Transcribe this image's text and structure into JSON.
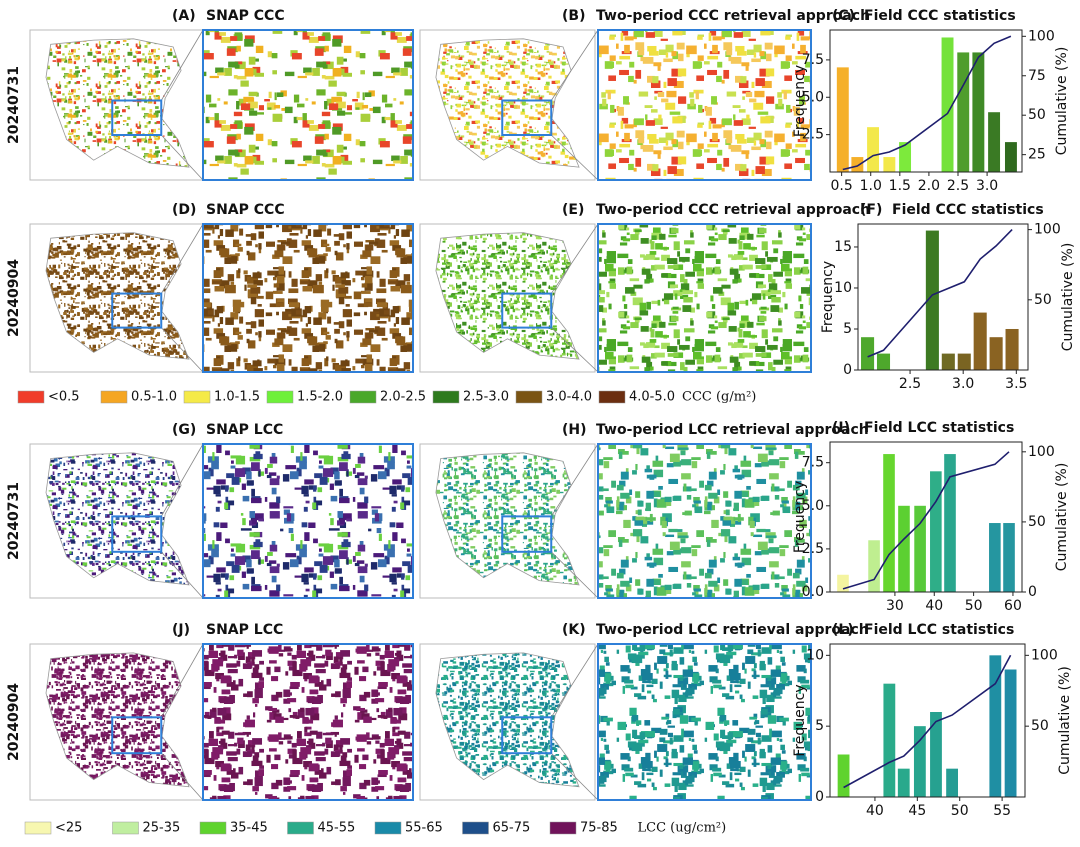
{
  "panels": [
    {
      "label": "(A)",
      "title": "SNAP CCC"
    },
    {
      "label": "(B)",
      "title": "Two-period CCC retrieval approach"
    },
    {
      "label": "(D)",
      "title": "SNAP CCC"
    },
    {
      "label": "(E)",
      "title": "Two-period CCC retrieval approach"
    },
    {
      "label": "(G)",
      "title": "SNAP LCC"
    },
    {
      "label": "(H)",
      "title": "Two-period LCC retrieval approach"
    },
    {
      "label": "(J)",
      "title": "SNAP LCC"
    },
    {
      "label": "(K)",
      "title": "Two-period LCC retrieval approach"
    }
  ],
  "row_labels": [
    "20240731",
    "20240904",
    "20240731",
    "20240904"
  ],
  "legends": [
    {
      "items": [
        {
          "label": "<0.5",
          "color": "#f03c2a"
        },
        {
          "label": "0.5-1.0",
          "color": "#f5a623"
        },
        {
          "label": "1.0-1.5",
          "color": "#f5ea48"
        },
        {
          "label": "1.5-2.0",
          "color": "#6ef03a"
        },
        {
          "label": "2.0-2.5",
          "color": "#4aa82a"
        },
        {
          "label": "2.5-3.0",
          "color": "#2e7a1e"
        },
        {
          "label": "3.0-4.0",
          "color": "#7a5414"
        },
        {
          "label": "4.0-5.0",
          "color": "#6b2e10"
        }
      ],
      "unit": "CCC (g/m²)"
    },
    {
      "items": [
        {
          "label": "<25",
          "color": "#f7f7b0"
        },
        {
          "label": "25-35",
          "color": "#c0eea0"
        },
        {
          "label": "35-45",
          "color": "#5fd32e"
        },
        {
          "label": "45-55",
          "color": "#2aab8a"
        },
        {
          "label": "55-65",
          "color": "#1a8aa8"
        },
        {
          "label": "65-75",
          "color": "#1e4f8a"
        },
        {
          "label": "75-85",
          "color": "#70135a"
        }
      ],
      "unit": "LCC (ug/cm²)"
    }
  ],
  "chart_data": [
    {
      "type": "bar",
      "label": "(C)",
      "title": "Field CCC statistics",
      "ylabel": "Frequency",
      "y2label": "Cumulative (%)",
      "x": [
        0.52,
        0.77,
        1.04,
        1.32,
        1.59,
        2.32,
        2.59,
        2.85,
        3.12,
        3.41
      ],
      "series": [
        {
          "values": [
            7,
            1,
            3,
            1,
            2,
            9,
            8,
            8,
            4,
            2
          ],
          "colors": [
            "#f5b02a",
            "#f5b02a",
            "#f3e84a",
            "#f3e84a",
            "#7dea3c",
            "#74e23a",
            "#4f9d2c",
            "#3f8a26",
            "#3a7a24",
            "#2f6a1e"
          ]
        },
        {
          "type": "line",
          "axis": "y2",
          "color": "#1f1f6e",
          "values": [
            15.6,
            17.8,
            24.4,
            26.7,
            31.1,
            51.1,
            68.9,
            86.7,
            95.6,
            100
          ]
        }
      ],
      "xlim": [
        0.3,
        3.6
      ],
      "xticks": [
        0.5,
        {
          "value": 1,
          "label": "1.0"
        },
        1.5,
        {
          "value": 2,
          "label": "2.0"
        },
        2.5,
        {
          "value": 3,
          "label": "3.0"
        }
      ],
      "ylim": [
        0,
        9.5
      ],
      "yticks": [
        2.5,
        {
          "value": 5,
          "label": "5.0"
        },
        7.5
      ],
      "y2lim": [
        14,
        104
      ],
      "y2ticks": [
        25,
        50,
        75,
        100
      ]
    },
    {
      "type": "bar",
      "label": "(F)",
      "title": "Field CCC statistics",
      "ylabel": "Frequency",
      "y2label": "Cumulative (%)",
      "x": [
        2.1,
        2.25,
        2.71,
        2.86,
        3.01,
        3.16,
        3.31,
        3.46
      ],
      "series": [
        {
          "values": [
            4,
            2,
            17,
            2,
            2,
            7,
            4,
            5
          ],
          "colors": [
            "#4ea82c",
            "#4ea82c",
            "#3d7a22",
            "#6f6a24",
            "#7a6422",
            "#8a6322",
            "#8a6322",
            "#8a6322"
          ]
        },
        {
          "type": "line",
          "axis": "y2",
          "color": "#1f1f6e",
          "values": [
            9.3,
            14,
            53.5,
            58.1,
            62.8,
            79.1,
            88.4,
            100
          ]
        }
      ],
      "xlim": [
        2.01,
        3.61
      ],
      "xticks": [
        2.5,
        {
          "value": 3,
          "label": "3.0"
        },
        3.5
      ],
      "ylim": [
        0,
        17.8
      ],
      "yticks": [
        0,
        5,
        10,
        15
      ],
      "y2lim": [
        0,
        104
      ],
      "y2ticks": [
        50,
        100
      ]
    },
    {
      "type": "bar",
      "label": "(I)",
      "title": "Field LCC statistics",
      "ylabel": "Frequency",
      "y2label": "Cumulative (%)",
      "x": [
        16.8,
        24.7,
        28.5,
        32.3,
        36.4,
        40.4,
        44,
        55.4,
        59
      ],
      "series": [
        {
          "values": [
            1,
            3,
            8,
            5,
            5,
            7,
            8,
            4,
            4
          ],
          "colors": [
            "#f4f4a0",
            "#bfee90",
            "#66d62e",
            "#5cd032",
            "#58c93a",
            "#2fae88",
            "#2aa68e",
            "#2596a0",
            "#2596a0"
          ]
        },
        {
          "type": "line",
          "axis": "y2",
          "color": "#1f1f6e",
          "values": [
            2.2,
            8.9,
            26.7,
            37.8,
            48.9,
            64.4,
            82.2,
            91.1,
            100
          ]
        }
      ],
      "xlim": [
        13.5,
        62.3
      ],
      "xticks": [
        30,
        40,
        50,
        60
      ],
      "ylim": [
        0,
        8.7
      ],
      "yticks": [
        {
          "value": 0,
          "label": "0.0"
        },
        2.5,
        {
          "value": 5,
          "label": "5.0"
        },
        7.5
      ],
      "y2lim": [
        0,
        107
      ],
      "y2ticks": [
        0,
        50,
        100
      ]
    },
    {
      "type": "bar",
      "label": "(L)",
      "title": "Field LCC statistics",
      "ylabel": "Frequency",
      "y2label": "Cumulative (%)",
      "x": [
        36.3,
        41.7,
        43.4,
        45.3,
        47.2,
        49.1,
        54.2,
        56
      ],
      "series": [
        {
          "values": [
            3,
            8,
            2,
            5,
            6,
            2,
            10,
            9
          ],
          "colors": [
            "#5fd32e",
            "#2aab8a",
            "#29a98c",
            "#27a58e",
            "#26a190",
            "#259c94",
            "#1f8fa3",
            "#1e8ba6"
          ]
        },
        {
          "type": "line",
          "axis": "y2",
          "color": "#1f1f6e",
          "values": [
            6.7,
            24.4,
            28.9,
            40,
            53.3,
            57.8,
            80,
            100
          ]
        }
      ],
      "xlim": [
        34.7,
        57.7
      ],
      "xticks": [
        40,
        45,
        50,
        55
      ],
      "ylim": [
        0,
        10.8
      ],
      "yticks": [
        0,
        5,
        10
      ],
      "y2lim": [
        0,
        108
      ],
      "y2ticks": [
        50,
        100
      ]
    }
  ]
}
